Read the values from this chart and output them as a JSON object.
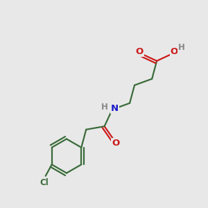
{
  "background_color": "#e8e8e8",
  "bond_color": "#3a6b3a",
  "n_color": "#1a1acc",
  "o_color": "#cc1a1a",
  "cl_color": "#3a6b3a",
  "h_color": "#888888",
  "bond_width": 1.6,
  "figsize": [
    3.0,
    3.0
  ],
  "dpi": 100,
  "xlim": [
    0,
    10
  ],
  "ylim": [
    0,
    10
  ]
}
